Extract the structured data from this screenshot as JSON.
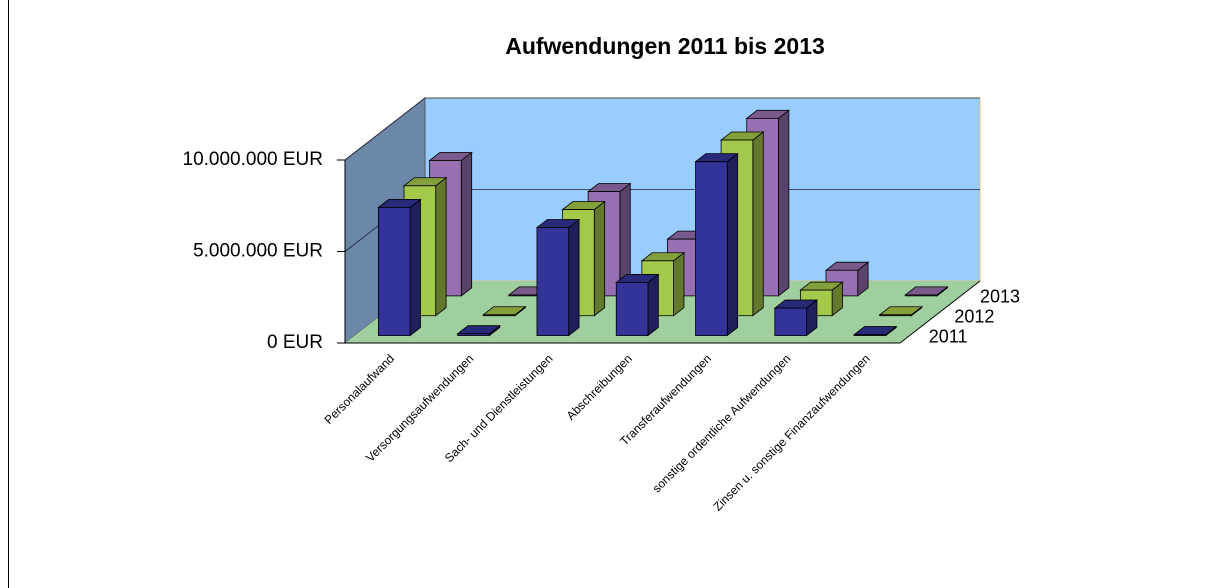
{
  "chart_data": {
    "type": "bar3d",
    "title": "Aufwendungen 2011 bis 2013",
    "categories": [
      "Personalaufwand",
      "Versorgungsaufwendungen",
      "Sach- und Dienstleistungen",
      "Abschreibungen",
      "Transferaufwendungen",
      "sonstige ordentliche Aufwendungen",
      "Zinsen u. sonstige Finanzaufwendungen"
    ],
    "series": [
      {
        "name": "2011",
        "color": "#333399",
        "values": [
          7000000,
          100000,
          5900000,
          2900000,
          9500000,
          1500000,
          50000
        ]
      },
      {
        "name": "2012",
        "color": "#a4c84a",
        "values": [
          7100000,
          50000,
          5800000,
          3000000,
          9600000,
          1400000,
          50000
        ]
      },
      {
        "name": "2013",
        "color": "#9670b0",
        "values": [
          7400000,
          50000,
          5700000,
          3100000,
          9700000,
          1400000,
          50000
        ]
      }
    ],
    "ylim": [
      0,
      10000000
    ],
    "yticks": [
      {
        "value": 0,
        "label": "0 EUR"
      },
      {
        "value": 5000000,
        "label": "5.000.000 EUR"
      },
      {
        "value": 10000000,
        "label": "10.000.000 EUR"
      }
    ],
    "grid": true
  }
}
